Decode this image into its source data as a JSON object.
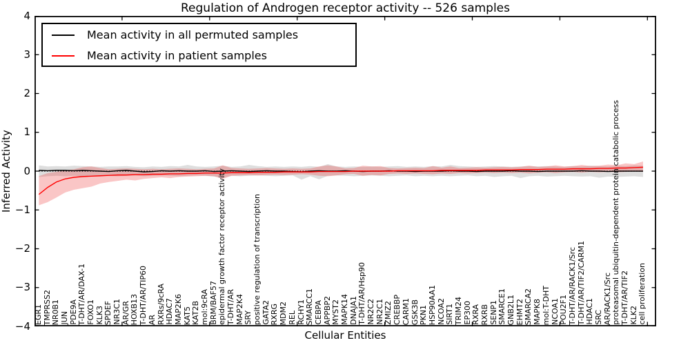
{
  "chart_data": {
    "type": "line",
    "title": "Regulation of Androgen receptor activity -- 526 samples",
    "xlabel": "Cellular Entities",
    "ylabel": "Inferred Activity",
    "ylim": [
      -4,
      4
    ],
    "xlim": [
      0,
      71
    ],
    "xtick_step": 10,
    "grid": false,
    "legend_position": "upper left",
    "zero_line": true,
    "ytick_values": [
      4,
      3,
      2,
      1,
      0,
      -1,
      -2,
      -3,
      -4
    ],
    "ytick_labels": [
      "4",
      "3",
      "2",
      "1",
      "0",
      "−1",
      "−2",
      "−3",
      "−4"
    ],
    "categories": [
      "EGR1",
      "TMPRSS2",
      "NR0B1",
      "JUN",
      "PDE9A",
      "T-DHT/AR/DAX-1",
      "FOXO1",
      "KLK3",
      "SPDEF",
      "NR3C1",
      "AR/GR",
      "HOXB13",
      "T-DHT/AR/TIP60",
      "AR",
      "RXRs/9cRA",
      "HDAC7",
      "MAP2K6",
      "KAT5",
      "KAT2B",
      "mol:9cRA",
      "BRM/BAF57",
      "epidermal growth factor receptor activity",
      "T-DHT/AR",
      "MAP2K4",
      "SRY",
      "positive regulation of transcription",
      "GATA2",
      "RXRG",
      "MDM2",
      "REL",
      "RCHY1",
      "SMARCC1",
      "CEBPA",
      "APPBP2",
      "MYST2",
      "MAPK14",
      "DNAJA1",
      "T-DHT/AR/Hsp90",
      "NR2C2",
      "NR2C1",
      "ZMIZ2",
      "CREBBP",
      "CARM1",
      "GSK3B",
      "PKN1",
      "HSP90AA1",
      "NCOA2",
      "SIRT1",
      "TRIM24",
      "EP300",
      "RXRA",
      "RXRB",
      "SENP1",
      "SMARCE1",
      "GNB2L1",
      "EHMT2",
      "SMARCA2",
      "MAPK8",
      "mol:T-DHT",
      "NCOA1",
      "POU2F1",
      "T-DHT/AR/RACK1/Src",
      "T-DHT/AR/TIF2/CARM1",
      "HDAC1",
      "SRC",
      "AR/RACK1/Src",
      "proteasomal ubiquitin-dependent protein catabolic process",
      "T-DHT/AR/TIF2",
      "KLK2",
      "cell proliferation"
    ],
    "series": [
      {
        "name": "Mean activity in all permuted samples",
        "color": "#000000",
        "band_color": "#a0a0a0",
        "band_opacity": 0.35,
        "values": [
          0.02,
          0.01,
          0.02,
          0.02,
          0.01,
          0.02,
          0.01,
          0.0,
          -0.01,
          0.01,
          0.02,
          0.0,
          -0.02,
          -0.01,
          0.01,
          0.0,
          0.01,
          0.0,
          0.0,
          0.01,
          -0.01,
          0.0,
          0.01,
          0.0,
          -0.01,
          0.0,
          0.01,
          0.0,
          0.0,
          -0.01,
          -0.02,
          0.0,
          0.01,
          0.0,
          0.0,
          0.01,
          0.0,
          -0.01,
          0.0,
          0.0,
          0.01,
          0.0,
          0.0,
          -0.01,
          0.0,
          0.0,
          0.0,
          0.01,
          0.0,
          0.0,
          -0.01,
          0.0,
          0.0,
          0.0,
          0.01,
          0.0,
          0.0,
          -0.01,
          0.0,
          0.0,
          0.0,
          0.0,
          0.01,
          0.0,
          0.0,
          -0.01,
          0.0,
          0.0,
          0.0,
          0.0
        ],
        "band_upper": [
          0.15,
          0.12,
          0.13,
          0.12,
          0.14,
          0.13,
          0.12,
          0.11,
          0.12,
          0.12,
          0.13,
          0.11,
          0.1,
          0.12,
          0.11,
          0.13,
          0.12,
          0.16,
          0.12,
          0.11,
          0.12,
          0.14,
          0.11,
          0.12,
          0.16,
          0.13,
          0.11,
          0.12,
          0.11,
          0.12,
          0.11,
          0.13,
          0.11,
          0.18,
          0.12,
          0.11,
          0.12,
          0.11,
          0.12,
          0.11,
          0.12,
          0.13,
          0.11,
          0.12,
          0.11,
          0.13,
          0.12,
          0.16,
          0.13,
          0.12,
          0.11,
          0.12,
          0.13,
          0.12,
          0.11,
          0.12,
          0.13,
          0.12,
          0.13,
          0.12,
          0.11,
          0.13,
          0.12,
          0.14,
          0.13,
          0.12,
          0.14,
          0.13,
          0.15,
          0.14
        ],
        "band_lower": [
          -0.15,
          -0.13,
          -0.12,
          -0.13,
          -0.12,
          -0.14,
          -0.12,
          -0.11,
          -0.12,
          -0.13,
          -0.12,
          -0.11,
          -0.13,
          -0.12,
          -0.11,
          -0.12,
          -0.13,
          -0.12,
          -0.11,
          -0.12,
          -0.14,
          -0.17,
          -0.12,
          -0.13,
          -0.12,
          -0.11,
          -0.12,
          -0.13,
          -0.12,
          -0.11,
          -0.22,
          -0.13,
          -0.21,
          -0.12,
          -0.11,
          -0.12,
          -0.13,
          -0.12,
          -0.11,
          -0.12,
          -0.13,
          -0.12,
          -0.11,
          -0.13,
          -0.12,
          -0.13,
          -0.12,
          -0.13,
          -0.12,
          -0.11,
          -0.13,
          -0.12,
          -0.15,
          -0.13,
          -0.12,
          -0.18,
          -0.13,
          -0.12,
          -0.14,
          -0.13,
          -0.12,
          -0.13,
          -0.14,
          -0.13,
          -0.17,
          -0.14,
          -0.15,
          -0.14,
          -0.13,
          -0.15
        ]
      },
      {
        "name": "Mean activity in patient samples",
        "color": "#ff0000",
        "band_color": "#ee3333",
        "band_opacity": 0.28,
        "values": [
          -0.6,
          -0.42,
          -0.28,
          -0.2,
          -0.16,
          -0.14,
          -0.13,
          -0.12,
          -0.11,
          -0.1,
          -0.1,
          -0.09,
          -0.09,
          -0.08,
          -0.08,
          -0.07,
          -0.07,
          -0.06,
          -0.06,
          -0.05,
          -0.05,
          -0.05,
          -0.04,
          -0.04,
          -0.04,
          -0.03,
          -0.03,
          -0.03,
          -0.02,
          -0.02,
          -0.02,
          -0.02,
          -0.01,
          -0.01,
          -0.01,
          -0.01,
          0.0,
          0.0,
          0.0,
          0.0,
          0.0,
          0.01,
          0.01,
          0.01,
          0.01,
          0.01,
          0.02,
          0.02,
          0.02,
          0.02,
          0.02,
          0.03,
          0.03,
          0.03,
          0.03,
          0.04,
          0.04,
          0.04,
          0.05,
          0.05,
          0.05,
          0.06,
          0.06,
          0.06,
          0.07,
          0.07,
          0.08,
          0.08,
          0.09,
          0.1
        ],
        "band_upper": [
          -0.13,
          -0.05,
          -0.02,
          0.02,
          0.05,
          0.1,
          0.12,
          0.08,
          0.05,
          0.06,
          0.07,
          0.06,
          0.05,
          0.06,
          0.05,
          0.06,
          0.07,
          0.06,
          0.05,
          0.06,
          0.07,
          0.15,
          0.08,
          0.07,
          0.06,
          0.07,
          0.08,
          0.07,
          0.06,
          0.07,
          0.06,
          0.07,
          0.12,
          0.15,
          0.12,
          0.07,
          0.08,
          0.14,
          0.12,
          0.13,
          0.08,
          0.07,
          0.08,
          0.09,
          0.08,
          0.13,
          0.09,
          0.12,
          0.08,
          0.09,
          0.1,
          0.09,
          0.1,
          0.11,
          0.1,
          0.11,
          0.14,
          0.11,
          0.12,
          0.15,
          0.12,
          0.13,
          0.16,
          0.13,
          0.14,
          0.17,
          0.15,
          0.2,
          0.18,
          0.25
        ],
        "band_lower": [
          -0.88,
          -0.8,
          -0.68,
          -0.55,
          -0.48,
          -0.44,
          -0.4,
          -0.32,
          -0.28,
          -0.25,
          -0.22,
          -0.24,
          -0.2,
          -0.18,
          -0.16,
          -0.18,
          -0.15,
          -0.14,
          -0.13,
          -0.12,
          -0.13,
          -0.2,
          -0.12,
          -0.11,
          -0.1,
          -0.11,
          -0.1,
          -0.09,
          -0.1,
          -0.09,
          -0.08,
          -0.09,
          -0.12,
          -0.13,
          -0.11,
          -0.08,
          -0.07,
          -0.12,
          -0.1,
          -0.11,
          -0.07,
          -0.06,
          -0.07,
          -0.06,
          -0.07,
          -0.08,
          -0.06,
          -0.07,
          -0.05,
          -0.06,
          -0.05,
          -0.04,
          -0.05,
          -0.04,
          -0.05,
          -0.04,
          -0.06,
          -0.04,
          -0.03,
          -0.05,
          -0.03,
          -0.02,
          -0.04,
          -0.02,
          -0.03,
          -0.02,
          -0.03,
          -0.02,
          -0.01,
          -0.02
        ]
      }
    ]
  }
}
